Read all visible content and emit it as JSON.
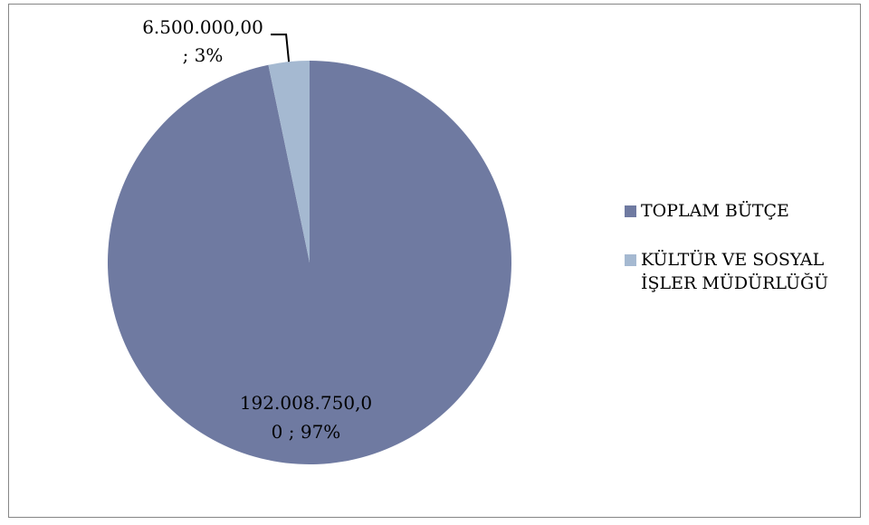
{
  "chart_data": {
    "type": "pie",
    "slices": [
      {
        "name": "TOPLAM BÜTÇE",
        "value": 192008750.0,
        "percent": 97,
        "color": "#6f7aa1",
        "label_lines": [
          "192.008.750,0",
          "0   ; 97%"
        ]
      },
      {
        "name": "KÜLTÜR VE SOSYAL İŞLER MÜDÜRLÜĞÜ",
        "value": 6500000.0,
        "percent": 3,
        "color": "#a5b9d1",
        "label_lines": [
          "6.500.000,00",
          "; 3%"
        ]
      }
    ],
    "legend": {
      "placement": "right",
      "items": [
        {
          "color": "#6f7aa1",
          "lines": [
            "TOPLAM BÜTÇE"
          ]
        },
        {
          "color": "#a5b9d1",
          "lines": [
            "KÜLTÜR VE SOSYAL",
            "İŞLER MÜDÜRLÜĞÜ"
          ]
        }
      ]
    }
  }
}
